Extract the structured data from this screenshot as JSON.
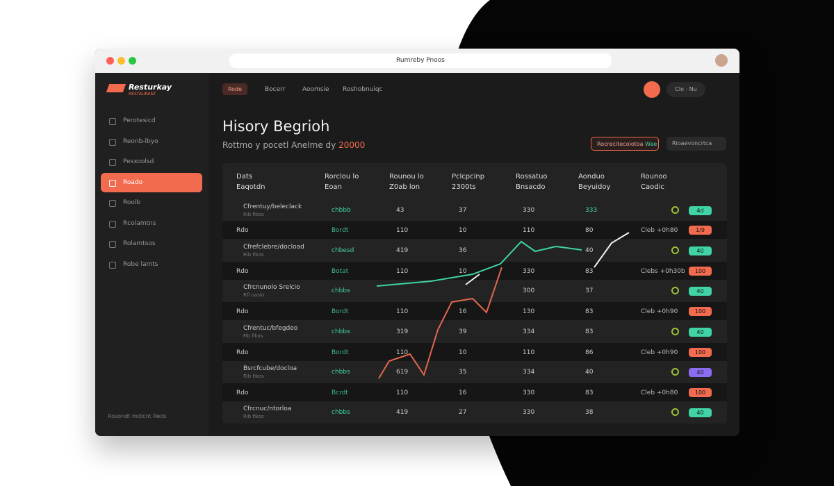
{
  "browser": {
    "url": "Rumreby Pnoos"
  },
  "sidebar": {
    "logo": "Resturkay",
    "logo_sub": "RESTAURANT",
    "items": [
      "Perotesicd",
      "Reonb-lbyo",
      "Pesxoolsd",
      "Roado",
      "Roolb",
      "Rcolamtns",
      "Rolamtsos",
      "Robe lamts"
    ],
    "active": 3,
    "footer": "Rosondt mdlcnt Reds"
  },
  "topnav": {
    "chip": "Rode",
    "links": [
      "Bocerr",
      "Aoomsie",
      "Roshobnuiqc"
    ],
    "user": "Clo",
    "lang": "Nu"
  },
  "header": {
    "title": "Hisory Begrioh",
    "subtitle": "Rottmo y pocetl Anelme dy",
    "highlight": "20000",
    "filter": "Rocrecitecolotoa",
    "filter_tag": "Wae",
    "sort": "Rioaevoncrtca"
  },
  "table": {
    "columns": [
      [
        "Dats",
        "Eaqotdn"
      ],
      [
        "Rorclou lo",
        "Eoan"
      ],
      [
        "Rounou lo",
        "Z0ab lon"
      ],
      [
        "Pclcpcinp",
        "2300ts"
      ],
      [
        "Rossatuo",
        "Bnsacdo"
      ],
      [
        "Aonduo",
        "Beyuidoy"
      ],
      [
        "Rounoo",
        "Caodic"
      ]
    ],
    "rows": [
      {
        "name": "Cfrentuy/beleclack",
        "sub": "Rib fikos",
        "cells": [
          "chbbb",
          "43",
          "37",
          "330",
          "333"
        ],
        "badge": "4d",
        "badge_color": "#3fd3a6"
      },
      {
        "name": "Rdo",
        "cells": [
          "Bordt",
          "110",
          "10",
          "110",
          "80"
        ],
        "note": "Cleb +0h80",
        "badge": "1/9",
        "badge_color": "#f26b4f"
      },
      {
        "name": "Cfrefclebre/docload",
        "sub": "Rib fikos",
        "cells": [
          "chbesd",
          "419",
          "36",
          null,
          "40"
        ],
        "badge": "40",
        "badge_color": "#3fd3a6"
      },
      {
        "name": "Rdo",
        "cells": [
          "Botat",
          "110",
          "10",
          "330",
          "83"
        ],
        "note": "Clebs +0h30b",
        "badge": "100",
        "badge_color": "#f26b4f"
      },
      {
        "name": "Cfrcnunolo Srelcio",
        "sub": "Rfl uasio",
        "cells": [
          "chbbs",
          null,
          null,
          "300",
          "37"
        ],
        "badge": "40",
        "badge_color": "#3fd3a6"
      },
      {
        "name": "Rdo",
        "cells": [
          "Bordt",
          "110",
          "16",
          "130",
          "83"
        ],
        "note": "Cleb +0h90",
        "badge": "100",
        "badge_color": "#f26b4f"
      },
      {
        "name": "Cfrentuc/bfegdeo",
        "sub": "Fib fikos",
        "cells": [
          "chbbs",
          "319",
          "39",
          "334",
          "83"
        ],
        "badge": "40",
        "badge_color": "#3fd3a6"
      },
      {
        "name": "Rdo",
        "cells": [
          "Bordt",
          "110",
          "10",
          "110",
          "86"
        ],
        "note": "Cleb +0h90",
        "badge": "100",
        "badge_color": "#f26b4f"
      },
      {
        "name": "Bsrcfcube/docloa",
        "sub": "Rib fikos",
        "cells": [
          "chbbs",
          "619",
          "35",
          "334",
          "40"
        ],
        "badge": "40",
        "badge_color": "#8c6cf0"
      },
      {
        "name": "Rdo",
        "cells": [
          "Bcrdt",
          "110",
          "16",
          "330",
          "83"
        ],
        "note": "Cleb +0h80",
        "badge": "100",
        "badge_color": "#f26b4f"
      },
      {
        "name": "Cfrcnuc/ntorloa",
        "sub": "Rib fikos",
        "cells": [
          "chbbs",
          "419",
          "27",
          "330",
          "38"
        ],
        "badge": "40",
        "badge_color": "#3fd3a6"
      }
    ]
  }
}
